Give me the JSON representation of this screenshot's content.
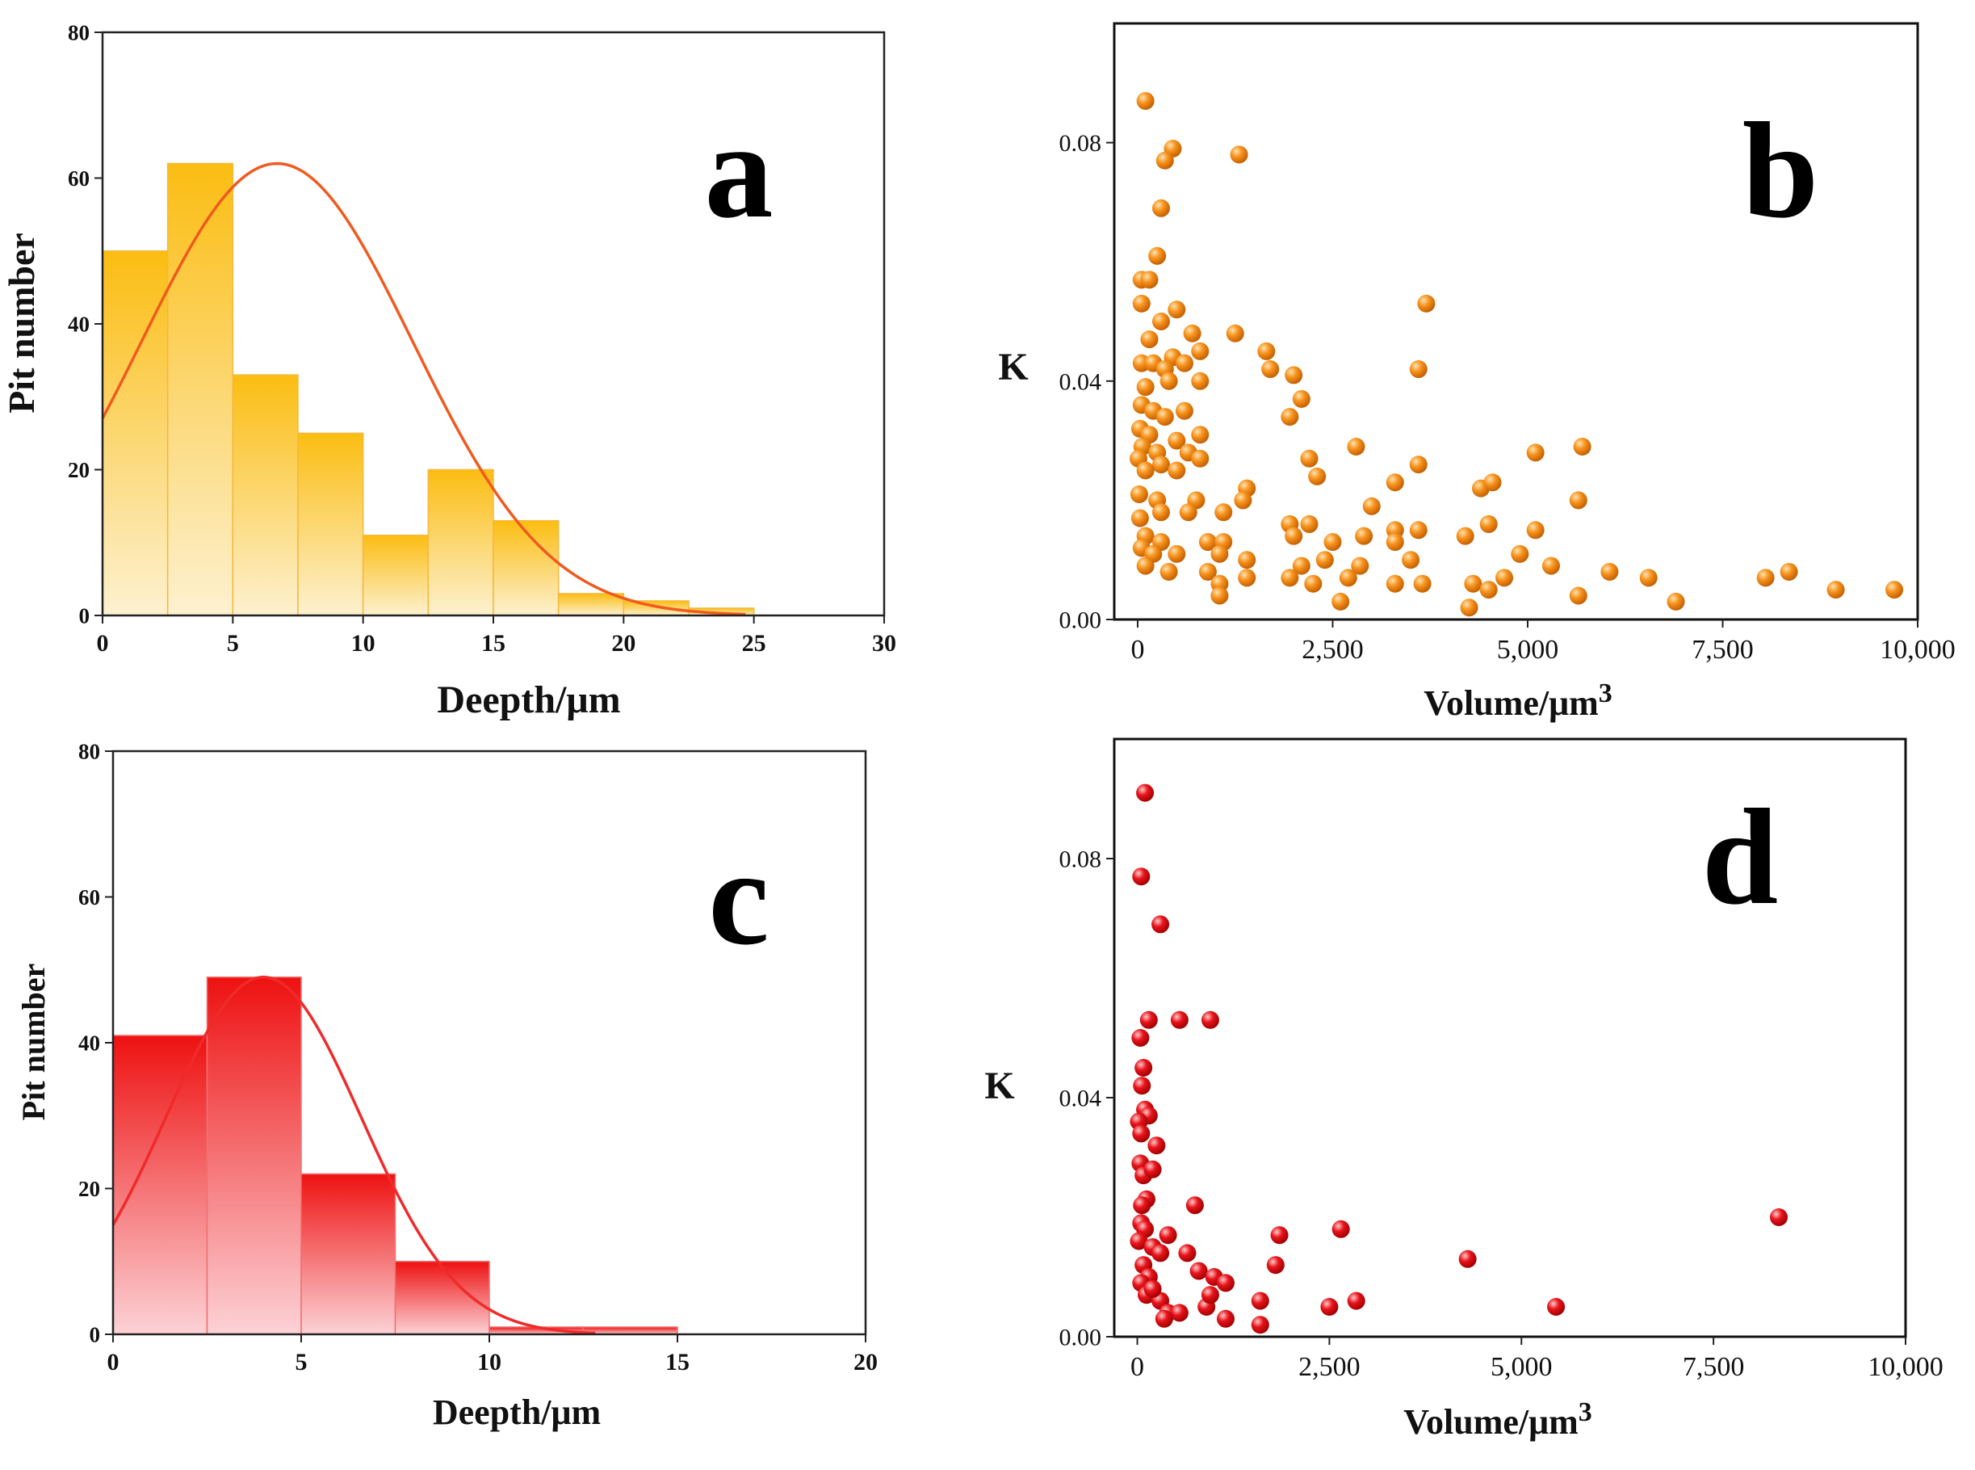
{
  "chart_data": [
    {
      "id": "a",
      "type": "bar",
      "panel_label": "a",
      "xlabel": "Deepth/μm",
      "ylabel": "Pit number",
      "xlim": [
        0,
        30
      ],
      "ylim": [
        0,
        80
      ],
      "xticks": [
        "0",
        "5",
        "10",
        "15",
        "20",
        "25",
        "30"
      ],
      "yticks": [
        "0",
        "20",
        "40",
        "60",
        "80"
      ],
      "bin_width": 2.5,
      "bin_starts": [
        0,
        2.5,
        5,
        7.5,
        10,
        12.5,
        15,
        17.5,
        20,
        22.5
      ],
      "values": [
        50,
        62,
        33,
        25,
        11,
        20,
        13,
        3,
        2,
        1
      ],
      "fit_curve": {
        "type": "normal",
        "mean": 6.7,
        "sd": 5.2,
        "peak": 62
      },
      "colors": {
        "bar_top": "#fbbd12",
        "bar_bottom": "#fdf1d0",
        "bar_edge": "#f5b83a",
        "curve": "#ef5a1e"
      }
    },
    {
      "id": "b",
      "type": "scatter",
      "panel_label": "b",
      "xlabel": "Volume/μm",
      "xlabel_sup": "3",
      "ylabel": "K",
      "xlim": [
        -300,
        10000
      ],
      "ylim": [
        0,
        0.1
      ],
      "xticks": [
        "0",
        "2,500",
        "5,000",
        "7,500",
        "10,000"
      ],
      "yticks": [
        "0.00",
        "0.04",
        "0.08"
      ],
      "colors": {
        "marker": "#f7931e",
        "marker_dark": "#c45f00",
        "marker_light": "#ffe3b0"
      },
      "points": [
        [
          100,
          0.087
        ],
        [
          450,
          0.079
        ],
        [
          350,
          0.077
        ],
        [
          1300,
          0.078
        ],
        [
          300,
          0.069
        ],
        [
          250,
          0.061
        ],
        [
          50,
          0.057
        ],
        [
          150,
          0.057
        ],
        [
          50,
          0.053
        ],
        [
          500,
          0.052
        ],
        [
          3700,
          0.053
        ],
        [
          300,
          0.05
        ],
        [
          150,
          0.047
        ],
        [
          700,
          0.048
        ],
        [
          800,
          0.045
        ],
        [
          1250,
          0.048
        ],
        [
          1650,
          0.045
        ],
        [
          50,
          0.043
        ],
        [
          200,
          0.043
        ],
        [
          450,
          0.044
        ],
        [
          600,
          0.043
        ],
        [
          350,
          0.042
        ],
        [
          1700,
          0.042
        ],
        [
          2000,
          0.041
        ],
        [
          3600,
          0.042
        ],
        [
          100,
          0.039
        ],
        [
          400,
          0.04
        ],
        [
          800,
          0.04
        ],
        [
          2100,
          0.037
        ],
        [
          1950,
          0.034
        ],
        [
          50,
          0.036
        ],
        [
          200,
          0.035
        ],
        [
          350,
          0.034
        ],
        [
          600,
          0.035
        ],
        [
          30,
          0.032
        ],
        [
          150,
          0.031
        ],
        [
          500,
          0.03
        ],
        [
          800,
          0.031
        ],
        [
          60,
          0.029
        ],
        [
          250,
          0.028
        ],
        [
          650,
          0.028
        ],
        [
          2800,
          0.029
        ],
        [
          5700,
          0.029
        ],
        [
          5100,
          0.028
        ],
        [
          10,
          0.027
        ],
        [
          300,
          0.026
        ],
        [
          800,
          0.027
        ],
        [
          2200,
          0.027
        ],
        [
          3600,
          0.026
        ],
        [
          100,
          0.025
        ],
        [
          500,
          0.025
        ],
        [
          2300,
          0.024
        ],
        [
          3300,
          0.023
        ],
        [
          4400,
          0.022
        ],
        [
          4550,
          0.023
        ],
        [
          1400,
          0.022
        ],
        [
          1350,
          0.02
        ],
        [
          20,
          0.021
        ],
        [
          250,
          0.02
        ],
        [
          750,
          0.02
        ],
        [
          5650,
          0.02
        ],
        [
          3000,
          0.019
        ],
        [
          1100,
          0.018
        ],
        [
          300,
          0.018
        ],
        [
          650,
          0.018
        ],
        [
          30,
          0.017
        ],
        [
          1950,
          0.016
        ],
        [
          2200,
          0.016
        ],
        [
          3300,
          0.015
        ],
        [
          3600,
          0.015
        ],
        [
          4500,
          0.016
        ],
        [
          5100,
          0.015
        ],
        [
          2000,
          0.014
        ],
        [
          2900,
          0.014
        ],
        [
          3300,
          0.013
        ],
        [
          4200,
          0.014
        ],
        [
          100,
          0.014
        ],
        [
          300,
          0.013
        ],
        [
          900,
          0.013
        ],
        [
          1100,
          0.013
        ],
        [
          2500,
          0.013
        ],
        [
          50,
          0.012
        ],
        [
          200,
          0.011
        ],
        [
          500,
          0.011
        ],
        [
          1050,
          0.011
        ],
        [
          1400,
          0.01
        ],
        [
          3500,
          0.01
        ],
        [
          4900,
          0.011
        ],
        [
          5300,
          0.009
        ],
        [
          2100,
          0.009
        ],
        [
          2400,
          0.01
        ],
        [
          2850,
          0.009
        ],
        [
          100,
          0.009
        ],
        [
          400,
          0.008
        ],
        [
          900,
          0.008
        ],
        [
          1400,
          0.007
        ],
        [
          1950,
          0.007
        ],
        [
          2250,
          0.006
        ],
        [
          2700,
          0.007
        ],
        [
          3300,
          0.006
        ],
        [
          3650,
          0.006
        ],
        [
          4300,
          0.006
        ],
        [
          4700,
          0.007
        ],
        [
          1050,
          0.006
        ],
        [
          1050,
          0.004
        ],
        [
          2600,
          0.003
        ],
        [
          4500,
          0.005
        ],
        [
          5650,
          0.004
        ],
        [
          6050,
          0.008
        ],
        [
          6550,
          0.007
        ],
        [
          6900,
          0.003
        ],
        [
          8050,
          0.007
        ],
        [
          8350,
          0.008
        ],
        [
          8950,
          0.005
        ],
        [
          9700,
          0.005
        ],
        [
          4250,
          0.002
        ]
      ]
    },
    {
      "id": "c",
      "type": "bar",
      "panel_label": "c",
      "xlabel": "Deepth/μm",
      "ylabel": "Pit number",
      "xlim": [
        0,
        20
      ],
      "ylim": [
        0,
        80
      ],
      "xticks": [
        "0",
        "5",
        "10",
        "15",
        "20"
      ],
      "yticks": [
        "0",
        "20",
        "40",
        "60",
        "80"
      ],
      "bin_width": 2.5,
      "bin_starts": [
        0,
        2.5,
        5,
        7.5,
        10,
        12.5
      ],
      "values": [
        41,
        49,
        22,
        10,
        1,
        1
      ],
      "fit_curve": {
        "type": "normal",
        "mean": 4.0,
        "sd": 2.6,
        "peak": 49
      },
      "colors": {
        "bar_top": "#ee1111",
        "bar_bottom": "#fcd2d6",
        "bar_edge": "#f07070",
        "curve": "#f02a2a"
      }
    },
    {
      "id": "d",
      "type": "scatter",
      "panel_label": "d",
      "xlabel": "Volume/μm",
      "xlabel_sup": "3",
      "ylabel": "K",
      "xlim": [
        -300,
        10000
      ],
      "ylim": [
        0,
        0.1
      ],
      "xticks": [
        "0",
        "2,500",
        "5,000",
        "7,500",
        "10,000"
      ],
      "yticks": [
        "0.00",
        "0.04",
        "0.08"
      ],
      "colors": {
        "marker": "#e8141c",
        "marker_dark": "#a00000",
        "marker_light": "#ffc9c9"
      },
      "points": [
        [
          100,
          0.091
        ],
        [
          50,
          0.077
        ],
        [
          300,
          0.069
        ],
        [
          150,
          0.053
        ],
        [
          550,
          0.053
        ],
        [
          950,
          0.053
        ],
        [
          40,
          0.05
        ],
        [
          80,
          0.045
        ],
        [
          60,
          0.042
        ],
        [
          100,
          0.038
        ],
        [
          150,
          0.037
        ],
        [
          20,
          0.036
        ],
        [
          50,
          0.034
        ],
        [
          250,
          0.032
        ],
        [
          40,
          0.029
        ],
        [
          80,
          0.027
        ],
        [
          200,
          0.028
        ],
        [
          120,
          0.023
        ],
        [
          60,
          0.022
        ],
        [
          750,
          0.022
        ],
        [
          50,
          0.019
        ],
        [
          100,
          0.018
        ],
        [
          400,
          0.017
        ],
        [
          20,
          0.016
        ],
        [
          200,
          0.015
        ],
        [
          300,
          0.014
        ],
        [
          650,
          0.014
        ],
        [
          80,
          0.012
        ],
        [
          150,
          0.01
        ],
        [
          800,
          0.011
        ],
        [
          1000,
          0.01
        ],
        [
          1150,
          0.009
        ],
        [
          1800,
          0.012
        ],
        [
          1850,
          0.017
        ],
        [
          2650,
          0.018
        ],
        [
          4300,
          0.013
        ],
        [
          8350,
          0.02
        ],
        [
          50,
          0.009
        ],
        [
          120,
          0.007
        ],
        [
          300,
          0.006
        ],
        [
          400,
          0.004
        ],
        [
          550,
          0.004
        ],
        [
          900,
          0.005
        ],
        [
          950,
          0.007
        ],
        [
          1150,
          0.003
        ],
        [
          1600,
          0.006
        ],
        [
          1600,
          0.002
        ],
        [
          2500,
          0.005
        ],
        [
          2850,
          0.006
        ],
        [
          5450,
          0.005
        ],
        [
          350,
          0.003
        ],
        [
          200,
          0.008
        ]
      ]
    }
  ]
}
